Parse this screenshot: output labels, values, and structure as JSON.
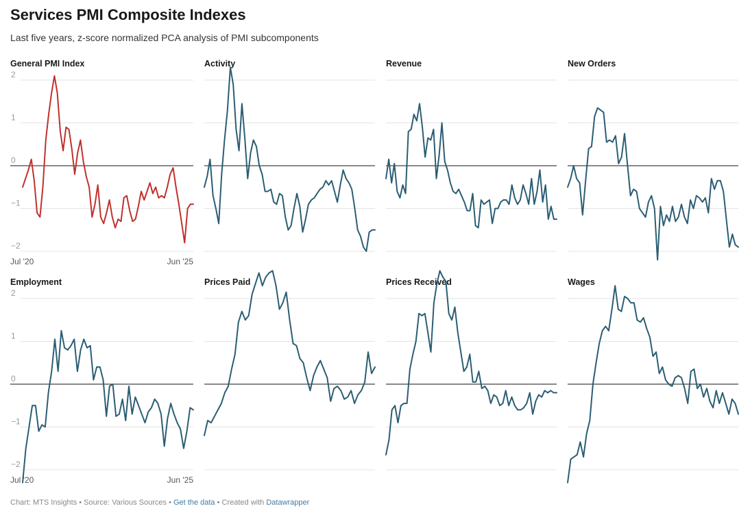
{
  "header": {
    "title": "Services PMI Composite Indexes",
    "subtitle": "Last five years, z-score normalized PCA analysis of PMI subcomponents"
  },
  "footer": {
    "chart_by": "Chart: MTS Insights",
    "sep1": " • ",
    "source": "Source: Various Sources",
    "sep2": " • ",
    "get_data": "Get the data",
    "sep3": " • ",
    "created_with": "Created with ",
    "tool": "Datawrapper"
  },
  "colors": {
    "highlight": "#c0302c",
    "line": "#2a5d73",
    "zero": "#111111",
    "grid": "#e3e3e3",
    "tick": "#9a9a9a"
  },
  "chart_data": {
    "type": "line",
    "layout": "small-multiples",
    "y_ticks": [
      -2,
      -1,
      0,
      1,
      2
    ],
    "ylim": [
      -2.4,
      2.4
    ],
    "x_labels": [
      "Jul '20",
      "Jun '25"
    ],
    "periods": 60,
    "series": [
      {
        "name": "General PMI Index",
        "highlight": true,
        "values": [
          -0.5,
          -0.3,
          -0.1,
          0.15,
          -0.35,
          -1.1,
          -1.2,
          -0.5,
          0.6,
          1.2,
          1.7,
          2.1,
          1.7,
          0.8,
          0.35,
          0.9,
          0.85,
          0.4,
          -0.2,
          0.3,
          0.6,
          0.1,
          -0.25,
          -0.5,
          -1.2,
          -0.9,
          -0.45,
          -1.2,
          -1.35,
          -1.1,
          -0.8,
          -1.2,
          -1.45,
          -1.25,
          -1.3,
          -0.75,
          -0.7,
          -1.05,
          -1.3,
          -1.25,
          -0.95,
          -0.6,
          -0.8,
          -0.6,
          -0.4,
          -0.65,
          -0.5,
          -0.75,
          -0.7,
          -0.75,
          -0.5,
          -0.2,
          -0.05,
          -0.5,
          -0.9,
          -1.35,
          -1.8,
          -1.0,
          -0.9,
          -0.9
        ]
      },
      {
        "name": "Activity",
        "values": [
          -0.5,
          -0.25,
          0.15,
          -0.7,
          -1.0,
          -1.35,
          -0.2,
          0.6,
          1.3,
          2.3,
          1.9,
          0.85,
          0.35,
          1.45,
          0.65,
          -0.3,
          0.3,
          0.6,
          0.45,
          0.0,
          -0.2,
          -0.6,
          -0.6,
          -0.55,
          -0.85,
          -0.9,
          -0.65,
          -0.7,
          -1.2,
          -1.5,
          -1.4,
          -1.0,
          -0.65,
          -0.95,
          -1.55,
          -1.25,
          -0.9,
          -0.8,
          -0.75,
          -0.65,
          -0.55,
          -0.5,
          -0.35,
          -0.45,
          -0.35,
          -0.6,
          -0.85,
          -0.45,
          -0.1,
          -0.3,
          -0.4,
          -0.55,
          -1.0,
          -1.5,
          -1.65,
          -1.9,
          -2.0,
          -1.55,
          -1.5,
          -1.5
        ]
      },
      {
        "name": "Revenue",
        "values": [
          -0.3,
          0.15,
          -0.4,
          0.05,
          -0.6,
          -0.75,
          -0.45,
          -0.65,
          0.8,
          0.85,
          1.2,
          1.05,
          1.45,
          0.9,
          0.2,
          0.65,
          0.6,
          0.85,
          -0.3,
          0.25,
          1.0,
          0.1,
          -0.1,
          -0.4,
          -0.6,
          -0.65,
          -0.55,
          -0.7,
          -0.85,
          -1.05,
          -1.05,
          -0.65,
          -1.4,
          -1.45,
          -0.8,
          -0.9,
          -0.85,
          -0.8,
          -1.35,
          -1.0,
          -1.0,
          -0.85,
          -0.8,
          -0.8,
          -0.9,
          -0.45,
          -0.75,
          -0.9,
          -0.8,
          -0.45,
          -0.65,
          -0.9,
          -0.3,
          -0.9,
          -0.6,
          -0.1,
          -0.85,
          -0.45,
          -1.25,
          -0.95,
          -1.25,
          -1.25
        ]
      },
      {
        "name": "New Orders",
        "values": [
          -0.5,
          -0.3,
          0.0,
          -0.3,
          -0.4,
          -1.15,
          -0.35,
          0.4,
          0.45,
          1.15,
          1.35,
          1.3,
          1.25,
          0.55,
          0.6,
          0.55,
          0.7,
          0.05,
          0.2,
          0.75,
          0.0,
          -0.7,
          -0.55,
          -0.6,
          -1.0,
          -1.1,
          -1.2,
          -0.85,
          -0.7,
          -1.0,
          -2.2,
          -0.95,
          -1.4,
          -1.15,
          -1.3,
          -0.95,
          -1.3,
          -1.2,
          -0.9,
          -1.2,
          -1.35,
          -0.8,
          -1.0,
          -0.7,
          -0.75,
          -0.85,
          -0.75,
          -1.1,
          -0.3,
          -0.55,
          -0.35,
          -0.35,
          -0.6,
          -1.25,
          -1.9,
          -1.6,
          -1.85,
          -1.9
        ]
      },
      {
        "name": "Employment",
        "values": [
          -2.3,
          -1.5,
          -1.0,
          -0.5,
          -0.5,
          -1.1,
          -0.95,
          -1.0,
          -0.2,
          0.3,
          1.05,
          0.3,
          1.25,
          0.85,
          0.8,
          0.9,
          1.05,
          0.3,
          0.8,
          1.05,
          0.85,
          0.9,
          0.1,
          0.4,
          0.4,
          0.1,
          -0.75,
          -0.05,
          0.0,
          -0.75,
          -0.7,
          -0.35,
          -0.85,
          -0.05,
          -0.7,
          -0.3,
          -0.5,
          -0.7,
          -0.9,
          -0.65,
          -0.55,
          -0.35,
          -0.45,
          -0.7,
          -1.45,
          -0.8,
          -0.45,
          -0.7,
          -0.9,
          -1.05,
          -1.5,
          -1.1,
          -0.55,
          -0.6
        ]
      },
      {
        "name": "Prices Paid",
        "values": [
          -1.2,
          -0.85,
          -0.9,
          -0.75,
          -0.6,
          -0.45,
          -0.2,
          -0.05,
          0.35,
          0.7,
          1.45,
          1.7,
          1.5,
          1.6,
          2.1,
          2.35,
          2.6,
          2.3,
          2.5,
          2.6,
          2.65,
          2.3,
          1.75,
          1.9,
          2.15,
          1.5,
          0.95,
          0.9,
          0.6,
          0.5,
          0.15,
          -0.15,
          0.2,
          0.4,
          0.55,
          0.35,
          0.15,
          -0.4,
          -0.1,
          -0.05,
          -0.15,
          -0.35,
          -0.3,
          -0.15,
          -0.45,
          -0.25,
          -0.15,
          0.05,
          0.75,
          0.25,
          0.4
        ]
      },
      {
        "name": "Prices Received",
        "values": [
          -1.65,
          -1.3,
          -0.6,
          -0.5,
          -0.9,
          -0.5,
          -0.45,
          -0.45,
          0.35,
          0.7,
          1.0,
          1.65,
          1.6,
          1.65,
          1.2,
          0.75,
          1.9,
          2.35,
          2.65,
          2.5,
          2.4,
          1.65,
          1.5,
          1.8,
          1.2,
          0.75,
          0.3,
          0.4,
          0.7,
          0.05,
          0.05,
          0.3,
          -0.1,
          -0.05,
          -0.15,
          -0.45,
          -0.25,
          -0.3,
          -0.5,
          -0.45,
          -0.15,
          -0.5,
          -0.3,
          -0.5,
          -0.6,
          -0.6,
          -0.55,
          -0.45,
          -0.2,
          -0.7,
          -0.4,
          -0.25,
          -0.3,
          -0.15,
          -0.2,
          -0.15,
          -0.2,
          -0.2
        ]
      },
      {
        "name": "Wages",
        "values": [
          -2.3,
          -1.75,
          -1.7,
          -1.65,
          -1.35,
          -1.7,
          -1.15,
          -0.85,
          0.0,
          0.5,
          0.95,
          1.25,
          1.35,
          1.25,
          1.75,
          2.3,
          1.75,
          1.7,
          2.05,
          2.0,
          1.9,
          1.9,
          1.5,
          1.45,
          1.55,
          1.3,
          1.1,
          0.65,
          0.75,
          0.25,
          0.4,
          0.1,
          0.0,
          -0.05,
          0.15,
          0.2,
          0.15,
          -0.1,
          -0.45,
          0.3,
          0.35,
          -0.1,
          0.0,
          -0.3,
          -0.1,
          -0.4,
          -0.55,
          -0.15,
          -0.45,
          -0.2,
          -0.45,
          -0.7,
          -0.35,
          -0.45,
          -0.7
        ]
      }
    ]
  }
}
